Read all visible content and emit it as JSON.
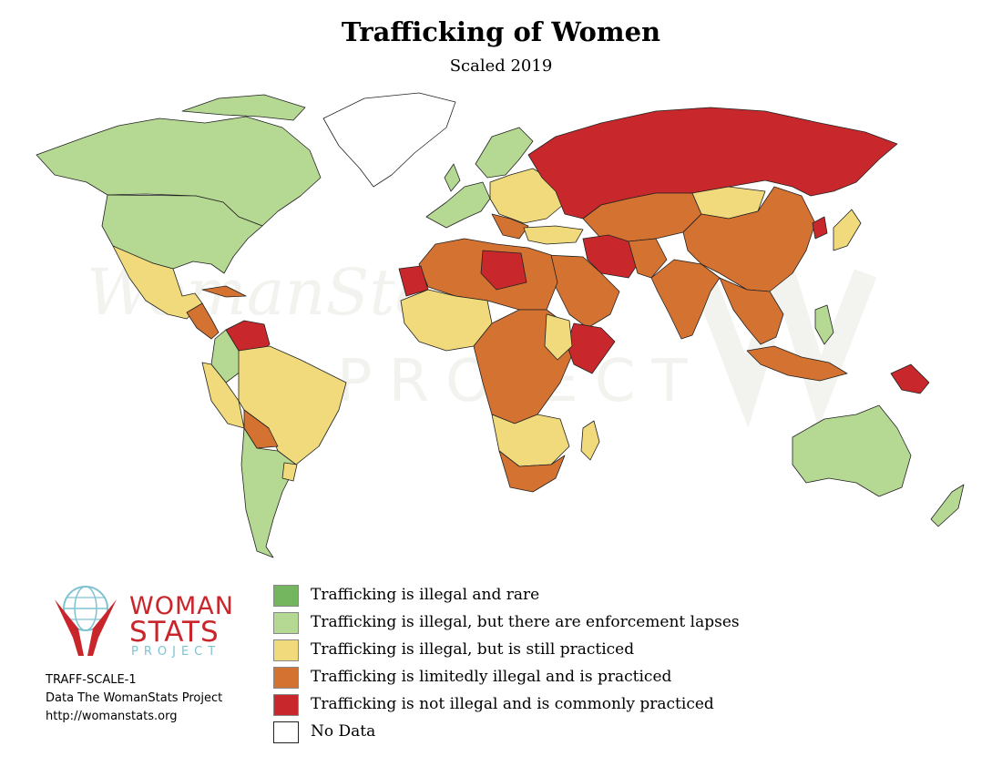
{
  "title": "Trafficking of Women",
  "subtitle": "Scaled 2019",
  "colors": {
    "illegal_rare": "#74b560",
    "enforcement_lapses": "#b5d893",
    "still_practiced": "#f0da7c",
    "limitedly_illegal": "#d47232",
    "not_illegal": "#c8282b",
    "no_data": "#ffffff",
    "border": "#222222"
  },
  "legend": {
    "items": [
      {
        "label": "Trafficking is illegal and rare",
        "color": "#74b560"
      },
      {
        "label": "Trafficking is illegal, but there are enforcement lapses",
        "color": "#b5d893"
      },
      {
        "label": "Trafficking is illegal, but is still practiced",
        "color": "#f0da7c"
      },
      {
        "label": "Trafficking is limitedly illegal and is practiced",
        "color": "#d47232"
      },
      {
        "label": "Trafficking is not illegal and is commonly practiced",
        "color": "#c8282b"
      },
      {
        "label": "No Data",
        "color": "#ffffff"
      }
    ]
  },
  "logo": {
    "line1": "WOMAN",
    "line2": "STATS",
    "line3": "PROJECT",
    "accent_color": "#c9262b",
    "secondary_color": "#7fc3d2",
    "icon": "globe-hands-icon"
  },
  "credits": {
    "code": "TRAFF-SCALE-1",
    "source": "Data The WomanStats Project",
    "url": "http://womanstats.org"
  }
}
